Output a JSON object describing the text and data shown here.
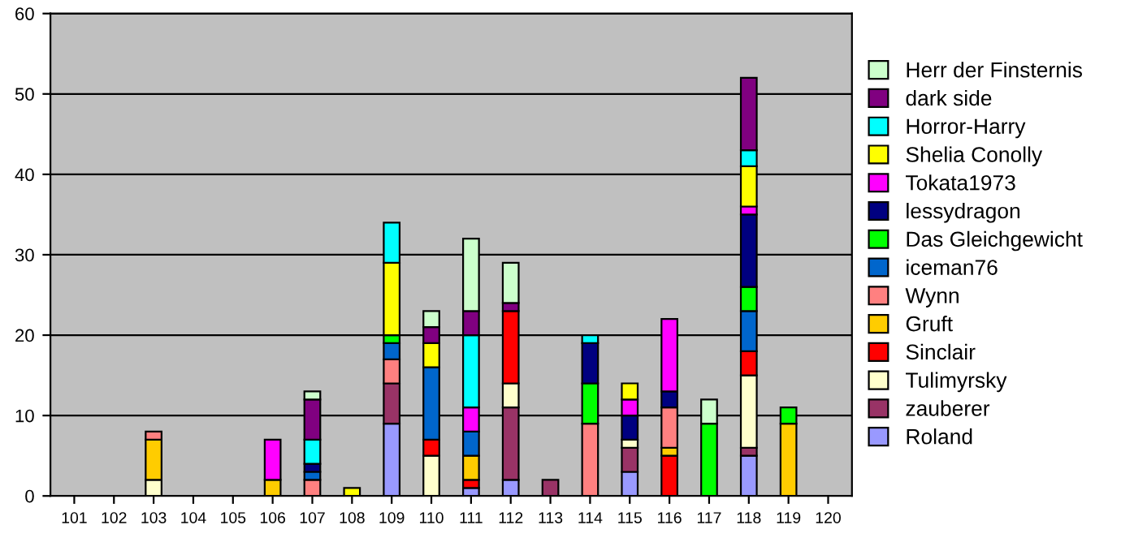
{
  "chart_data": {
    "type": "bar",
    "stacked": true,
    "categories": [
      "101",
      "102",
      "103",
      "104",
      "105",
      "106",
      "107",
      "108",
      "109",
      "110",
      "111",
      "112",
      "113",
      "114",
      "115",
      "116",
      "117",
      "118",
      "119",
      "120"
    ],
    "series": [
      {
        "name": "Roland",
        "color": "#9999ff",
        "values": [
          null,
          null,
          null,
          null,
          null,
          null,
          null,
          null,
          9,
          null,
          1,
          2,
          null,
          null,
          3,
          null,
          null,
          5,
          null,
          null
        ]
      },
      {
        "name": "zauberer",
        "color": "#993366",
        "values": [
          null,
          null,
          null,
          null,
          null,
          null,
          null,
          null,
          5,
          null,
          null,
          9,
          2,
          null,
          3,
          null,
          null,
          1,
          null,
          null
        ]
      },
      {
        "name": "Tulimyrsky",
        "color": "#ffffcc",
        "values": [
          null,
          null,
          2,
          null,
          null,
          null,
          null,
          null,
          null,
          5,
          null,
          3,
          null,
          null,
          1,
          null,
          null,
          9,
          null,
          null
        ]
      },
      {
        "name": "Sinclair",
        "color": "#ff0000",
        "values": [
          null,
          null,
          null,
          null,
          null,
          null,
          null,
          null,
          null,
          2,
          1,
          9,
          null,
          null,
          null,
          5,
          null,
          3,
          null,
          null
        ]
      },
      {
        "name": "Gruft",
        "color": "#ffcc00",
        "values": [
          null,
          null,
          5,
          null,
          null,
          2,
          null,
          null,
          null,
          null,
          3,
          null,
          null,
          null,
          null,
          1,
          null,
          null,
          9,
          null
        ]
      },
      {
        "name": "Wynn",
        "color": "#ff8080",
        "values": [
          null,
          null,
          1,
          null,
          null,
          null,
          2,
          null,
          3,
          null,
          null,
          null,
          null,
          9,
          null,
          5,
          null,
          null,
          null,
          null
        ]
      },
      {
        "name": "iceman76",
        "color": "#0066cc",
        "values": [
          null,
          null,
          null,
          null,
          null,
          null,
          1,
          null,
          2,
          9,
          3,
          null,
          null,
          null,
          null,
          null,
          null,
          5,
          null,
          null
        ]
      },
      {
        "name": "Das Gleichgewicht",
        "color": "#00ff00",
        "values": [
          null,
          null,
          null,
          null,
          null,
          null,
          null,
          null,
          1,
          null,
          null,
          null,
          null,
          5,
          null,
          null,
          9,
          3,
          2,
          null
        ]
      },
      {
        "name": "lessydragon",
        "color": "#000080",
        "values": [
          null,
          null,
          null,
          null,
          null,
          null,
          1,
          null,
          null,
          null,
          null,
          null,
          null,
          5,
          3,
          2,
          null,
          9,
          null,
          null
        ]
      },
      {
        "name": "Tokata1973",
        "color": "#ff00ff",
        "values": [
          null,
          null,
          null,
          null,
          null,
          5,
          null,
          null,
          null,
          null,
          3,
          null,
          null,
          null,
          2,
          9,
          null,
          1,
          null,
          null
        ]
      },
      {
        "name": "Shelia Conolly",
        "color": "#ffff00",
        "values": [
          null,
          null,
          null,
          null,
          null,
          null,
          null,
          1,
          9,
          3,
          null,
          null,
          null,
          null,
          2,
          null,
          null,
          5,
          null,
          null
        ]
      },
      {
        "name": "Horror-Harry",
        "color": "#00ffff",
        "values": [
          null,
          null,
          null,
          null,
          null,
          null,
          3,
          null,
          5,
          null,
          9,
          null,
          null,
          1,
          null,
          null,
          null,
          2,
          null,
          null
        ]
      },
      {
        "name": "dark side",
        "color": "#800080",
        "values": [
          null,
          null,
          null,
          null,
          null,
          null,
          5,
          null,
          null,
          2,
          3,
          1,
          null,
          null,
          null,
          null,
          null,
          9,
          null,
          null
        ]
      },
      {
        "name": "Herr der Finsternis",
        "color": "#ccffcc",
        "values": [
          null,
          null,
          null,
          null,
          null,
          null,
          1,
          null,
          null,
          2,
          9,
          5,
          null,
          null,
          null,
          null,
          3,
          null,
          null,
          null
        ]
      }
    ],
    "ylim": [
      0,
      60
    ],
    "yticks": [
      0,
      10,
      20,
      30,
      40,
      50,
      60
    ],
    "grid": "y",
    "legend": "right"
  }
}
